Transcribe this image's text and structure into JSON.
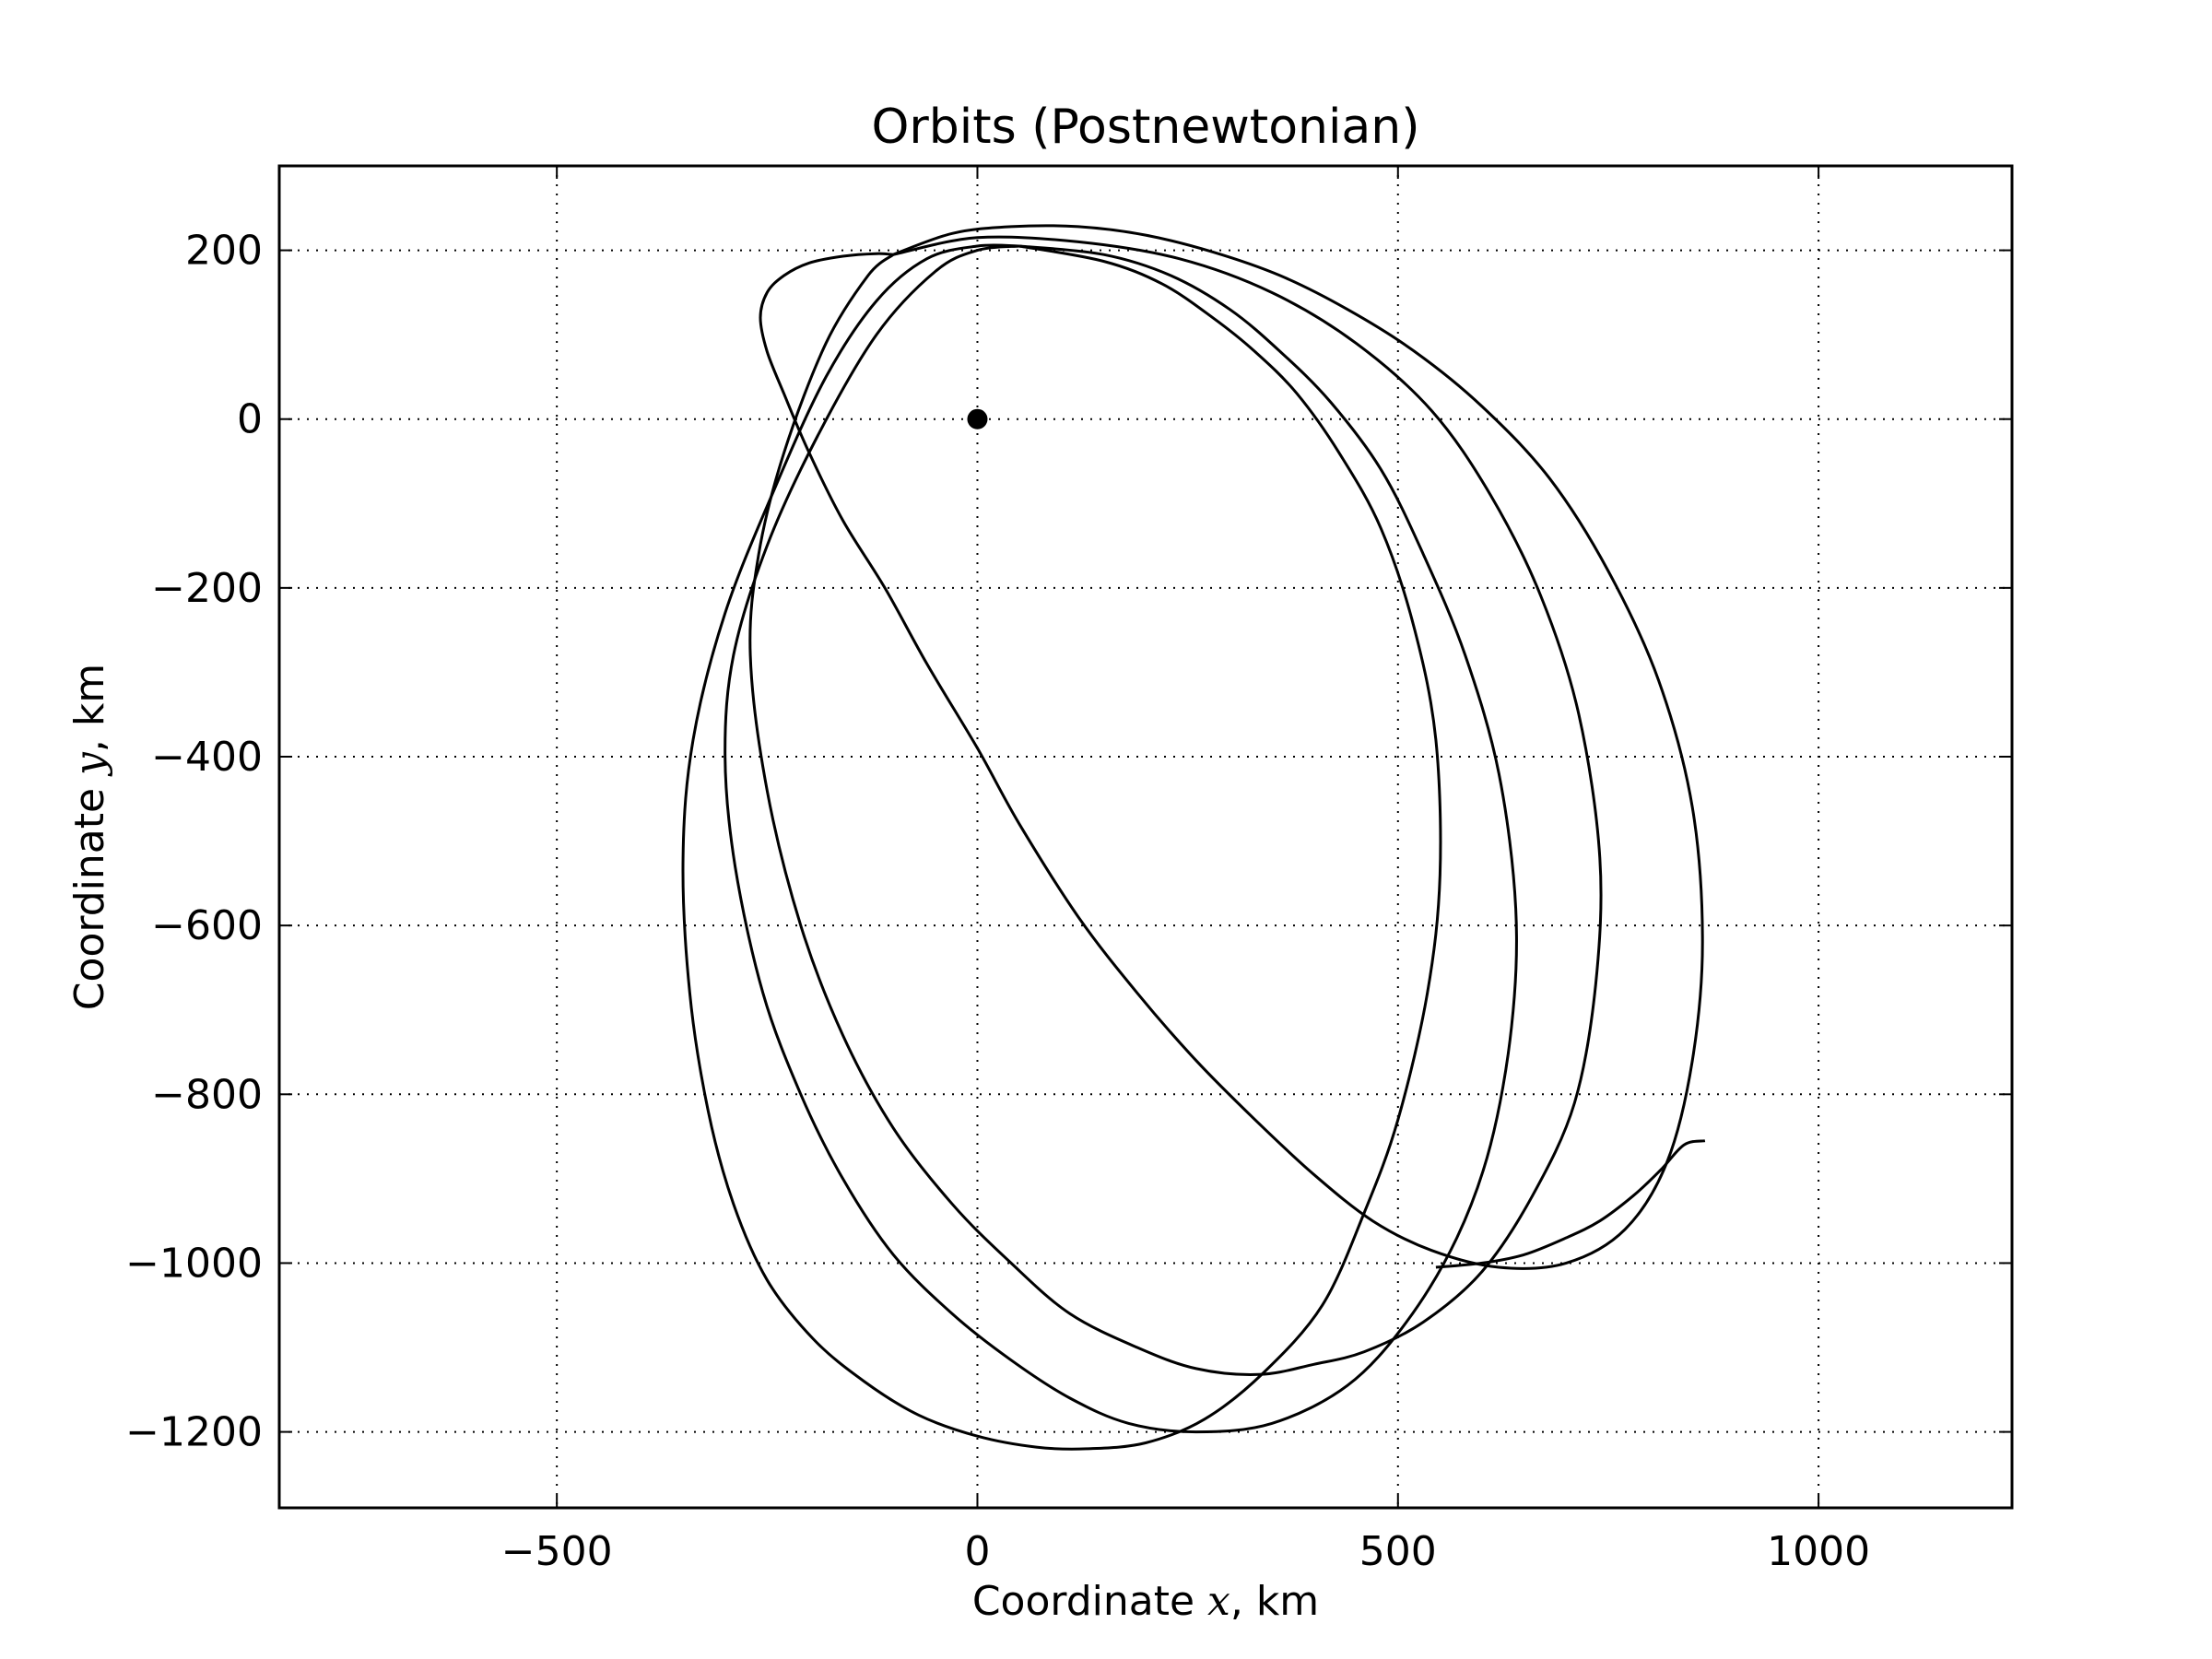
{
  "chart_data": {
    "type": "line",
    "title": "Orbits (Postnewtonian)",
    "xlabel": {
      "prefix": "Coordinate ",
      "variable": "x",
      "suffix": ", km"
    },
    "ylabel": {
      "prefix": "Coordinate ",
      "variable": "y",
      "suffix": ", km"
    },
    "xlim": [
      -830,
      1230
    ],
    "ylim": [
      -1290,
      300
    ],
    "xticks": [
      -500,
      0,
      500,
      1000
    ],
    "xtick_labels": [
      "−500",
      "0",
      "500",
      "1000"
    ],
    "yticks": [
      200,
      0,
      -200,
      -400,
      -600,
      -800,
      -1000,
      -1200
    ],
    "ytick_labels": [
      "200",
      "0",
      "−200",
      "−400",
      "−600",
      "−800",
      "−1000",
      "−1200"
    ],
    "grid": true,
    "central_body": {
      "x": 0,
      "y": 0
    },
    "line_color": "#000000",
    "series": [
      {
        "x": [
          50,
          150,
          220,
          280,
          330,
          380,
          430,
          480,
          520,
          545,
          550,
          535,
          500,
          460,
          410,
          340,
          270,
          200,
          130,
          70,
          0,
          -70,
          -135,
          -195,
          -250,
          -290,
          -320,
          -342,
          -350,
          -338,
          -300,
          -240,
          -180,
          -120,
          -60,
          0,
          50
        ],
        "y": [
          205,
          187,
          160,
          120,
          80,
          30,
          -40,
          -130,
          -250,
          -380,
          -540,
          -680,
          -830,
          -940,
          -1050,
          -1130,
          -1185,
          -1213,
          -1220,
          -1218,
          -1205,
          -1180,
          -1140,
          -1090,
          -1020,
          -930,
          -820,
          -680,
          -520,
          -380,
          -230,
          -80,
          50,
          140,
          190,
          205,
          205
        ]
      },
      {
        "x": [
          50,
          150,
          230,
          300,
          360,
          420,
          480,
          530,
          580,
          620,
          640,
          635,
          610,
          570,
          510,
          440,
          350,
          260,
          180,
          110,
          40,
          -30,
          -100,
          -160,
          -210,
          -255,
          -288,
          -300,
          -290,
          -250,
          -190,
          -120,
          -50,
          0,
          50
        ],
        "y": [
          205,
          195,
          170,
          130,
          80,
          20,
          -60,
          -160,
          -280,
          -420,
          -580,
          -720,
          -860,
          -970,
          -1070,
          -1145,
          -1190,
          -1200,
          -1190,
          -1160,
          -1115,
          -1060,
          -990,
          -900,
          -800,
          -680,
          -530,
          -400,
          -280,
          -150,
          -20,
          100,
          175,
          200,
          205
        ]
      },
      {
        "x": [
          -100,
          0,
          120,
          240,
          350,
          450,
          540,
          610,
          670,
          715,
          740,
          735,
          710,
          660,
          600,
          530,
          460,
          400,
          335,
          260,
          190,
          110,
          40,
          -30,
          -100,
          -160,
          -210,
          -250,
          -270,
          -260,
          -230,
          -180,
          -130,
          -100
        ],
        "y": [
          195,
          215,
          210,
          190,
          150,
          90,
          10,
          -90,
          -210,
          -350,
          -520,
          -670,
          -810,
          -920,
          -1010,
          -1070,
          -1105,
          -1120,
          -1132,
          -1125,
          -1100,
          -1060,
          -1000,
          -930,
          -840,
          -730,
          -600,
          -440,
          -280,
          -160,
          -40,
          90,
          170,
          195
        ]
      },
      {
        "x": [
          -100,
          -30,
          40,
          120,
          200,
          280,
          360,
          440,
          520,
          600,
          680,
          750,
          810,
          850,
          862,
          850,
          820,
          770,
          700,
          620,
          540,
          470,
          400,
          330,
          260,
          190,
          120,
          50,
          0,
          -60,
          -110,
          -160,
          -200,
          -230,
          -250,
          -258,
          -250,
          -230,
          -200,
          -160,
          -120,
          -100
        ],
        "y": [
          195,
          220,
          228,
          228,
          218,
          198,
          170,
          130,
          80,
          15,
          -70,
          -180,
          -310,
          -460,
          -620,
          -760,
          -880,
          -960,
          -1000,
          -1005,
          -985,
          -950,
          -895,
          -830,
          -760,
          -680,
          -590,
          -480,
          -390,
          -290,
          -200,
          -120,
          -40,
          30,
          80,
          120,
          150,
          170,
          185,
          193,
          196,
          195
        ]
      },
      {
        "x": [
          545,
          600,
          650,
          700,
          740,
          780,
          812,
          840,
          865
        ],
        "y": [
          -1005,
          -1000,
          -990,
          -970,
          -950,
          -920,
          -890,
          -860,
          -855
        ]
      }
    ]
  }
}
